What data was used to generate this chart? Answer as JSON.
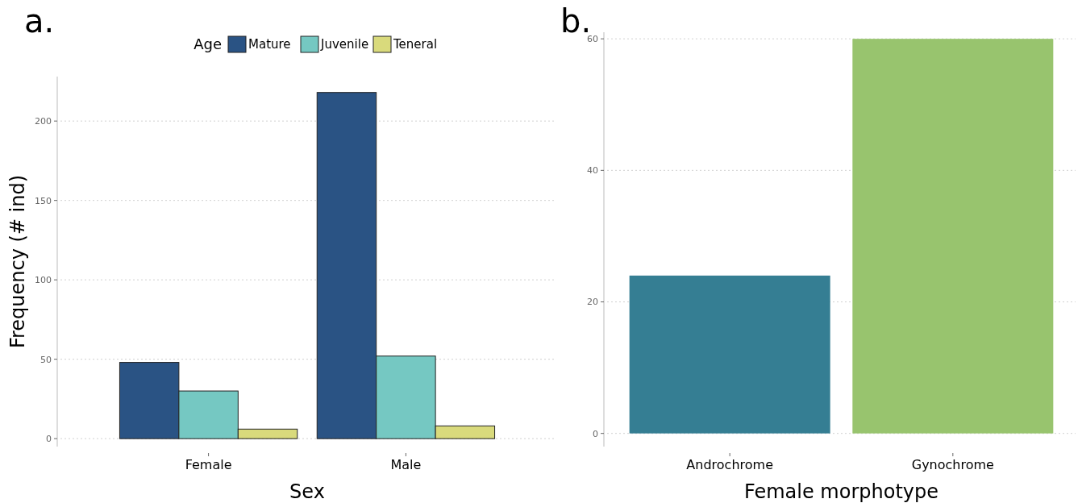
{
  "chart_data": [
    {
      "type": "bar",
      "title": "a.",
      "xlabel": "Sex",
      "ylabel": "Frequency (# ind)",
      "legend_title": "Age",
      "categories": [
        "Female",
        "Male"
      ],
      "series": [
        {
          "name": "Mature",
          "color": "#2a5384",
          "values": [
            48,
            218
          ]
        },
        {
          "name": "Juvenile",
          "color": "#75c8c2",
          "values": [
            30,
            52
          ]
        },
        {
          "name": "Teneral",
          "color": "#d9da7c",
          "values": [
            6,
            8
          ]
        }
      ],
      "ylim": [
        -5,
        228
      ],
      "yticks": [
        0,
        50,
        100,
        150,
        200
      ],
      "grid": "y",
      "legend": "top"
    },
    {
      "type": "bar",
      "title": "b.",
      "xlabel": "Female morphotype",
      "categories": [
        "Androchrome",
        "Gynochrome"
      ],
      "values": [
        24,
        60
      ],
      "colors": [
        "#357e93",
        "#98c46e"
      ],
      "ylim": [
        -2,
        61
      ],
      "yticks": [
        0,
        20,
        40,
        60
      ],
      "grid": "y"
    }
  ]
}
